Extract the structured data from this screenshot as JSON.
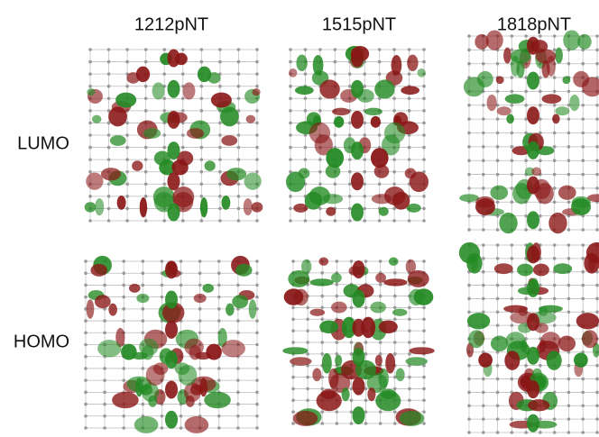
{
  "columns": [
    "1212pNT",
    "1515pNT",
    "1818pNT"
  ],
  "rows": [
    "LUMO",
    "HOMO"
  ]
}
